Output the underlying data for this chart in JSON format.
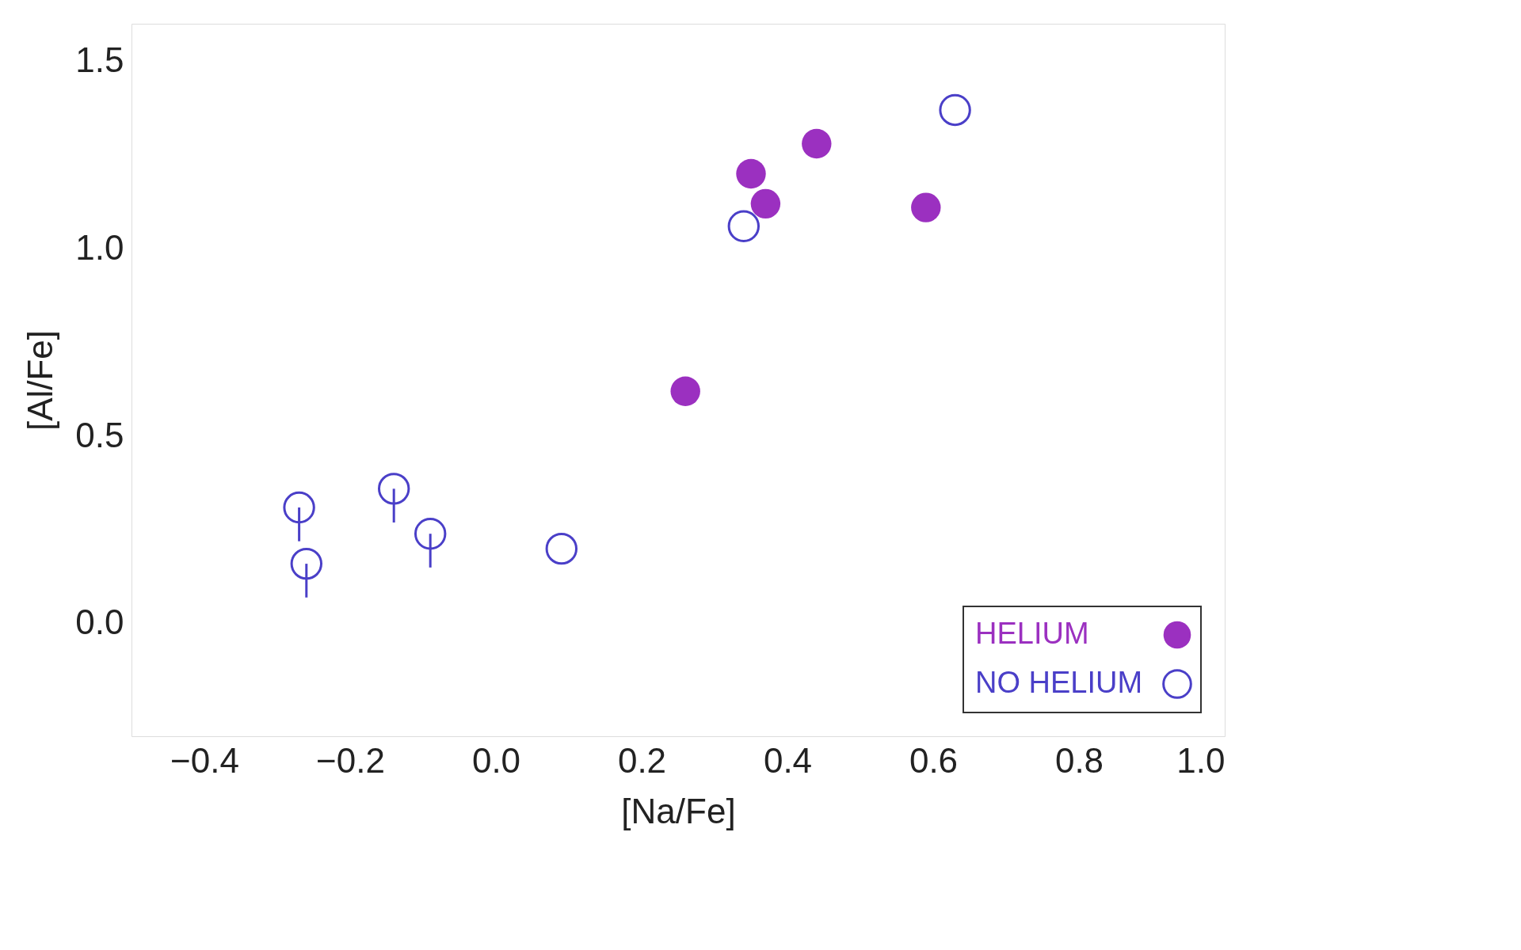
{
  "chart_data": {
    "type": "scatter",
    "xlabel": "[Na/Fe]",
    "ylabel": "[Al/Fe]",
    "xlim": [
      -0.5,
      1.0
    ],
    "ylim": [
      -0.3,
      1.6
    ],
    "xticks": [
      {
        "value": -0.4,
        "label": "−0.4"
      },
      {
        "value": -0.2,
        "label": "−0.2"
      },
      {
        "value": 0,
        "label": "0.0"
      },
      {
        "value": 0.2,
        "label": "0.2"
      },
      {
        "value": 0.4,
        "label": "0.4"
      },
      {
        "value": 0.6,
        "label": "0.6"
      },
      {
        "value": 0.8,
        "label": "0.8"
      },
      {
        "value": 1,
        "label": "1.0"
      }
    ],
    "yticks": [
      {
        "value": 0,
        "label": "0.0"
      },
      {
        "value": 0.5,
        "label": "0.5"
      },
      {
        "value": 1,
        "label": "1.0"
      },
      {
        "value": 1.5,
        "label": "1.5"
      }
    ],
    "legend": "bottom right",
    "marker": "circle",
    "series": [
      {
        "name": "HELIUM",
        "color": "#9b30c0",
        "x": [
          0.35,
          0.37,
          0.44,
          0.59,
          0.26
        ],
        "values": [
          1.2,
          1.12,
          1.28,
          1.11,
          0.62
        ]
      },
      {
        "name": "NO HELIUM",
        "color": "#4a3fc8",
        "x": [
          0.63,
          0.34,
          0.09,
          -0.27,
          -0.26,
          -0.14,
          -0.09
        ],
        "values": [
          1.37,
          1.06,
          0.2,
          0.31,
          0.16,
          0.36,
          0.24
        ],
        "errors": [
          null,
          null,
          null,
          [
            0.22,
            0.31
          ],
          [
            0.07,
            0.16
          ],
          [
            0.27,
            0.36
          ],
          [
            0.15,
            0.24
          ]
        ]
      }
    ]
  }
}
